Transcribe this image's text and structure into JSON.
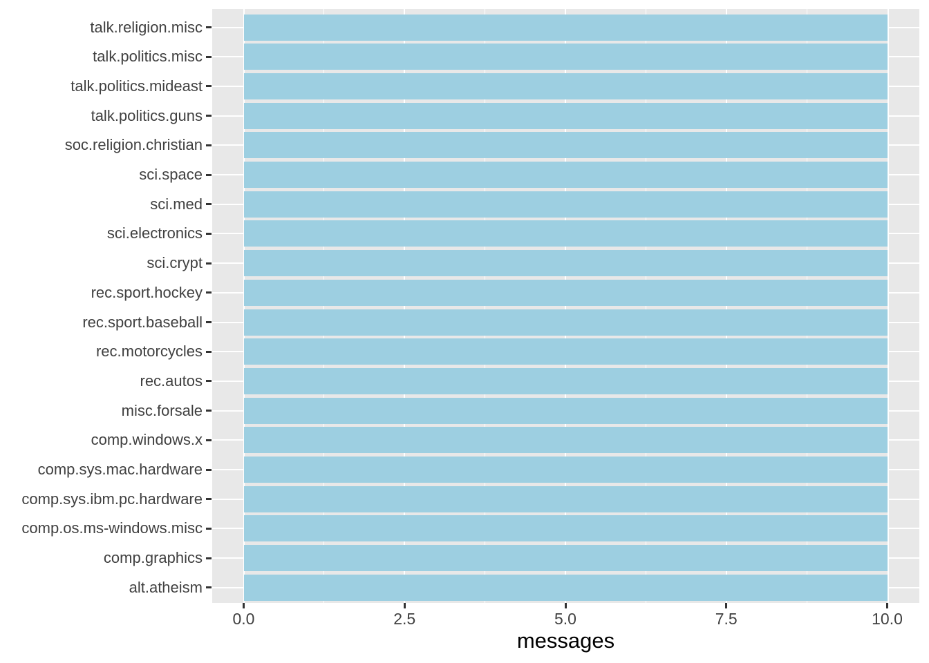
{
  "chart_data": {
    "type": "bar",
    "orientation": "horizontal",
    "title": "",
    "xlabel": "messages",
    "ylabel": "",
    "categories": [
      "talk.religion.misc",
      "talk.politics.misc",
      "talk.politics.mideast",
      "talk.politics.guns",
      "soc.religion.christian",
      "sci.space",
      "sci.med",
      "sci.electronics",
      "sci.crypt",
      "rec.sport.hockey",
      "rec.sport.baseball",
      "rec.motorcycles",
      "rec.autos",
      "misc.forsale",
      "comp.windows.x",
      "comp.sys.mac.hardware",
      "comp.sys.ibm.pc.hardware",
      "comp.os.ms-windows.misc",
      "comp.graphics",
      "alt.atheism"
    ],
    "values": [
      10,
      10,
      10,
      10,
      10,
      10,
      10,
      10,
      10,
      10,
      10,
      10,
      10,
      10,
      10,
      10,
      10,
      10,
      10,
      10
    ],
    "xlim": [
      0,
      10
    ],
    "x_major_ticks": [
      0.0,
      2.5,
      5.0,
      7.5,
      10.0
    ],
    "x_tick_labels": [
      "0.0",
      "2.5",
      "5.0",
      "7.5",
      "10.0"
    ],
    "x_minor_ticks": [
      1.25,
      3.75,
      6.25,
      8.75
    ],
    "grid": "white major and minor gridlines on gray panel",
    "legend": "none"
  },
  "style": {
    "bar_fill": "#9DCFE1",
    "panel_bg": "#E8E8E8",
    "grid_color": "#FFFFFF",
    "tick_mark_color": "#333333",
    "axis_text_color": "#404040",
    "axis_title_color": "#000000",
    "background": "#FFFFFF"
  }
}
